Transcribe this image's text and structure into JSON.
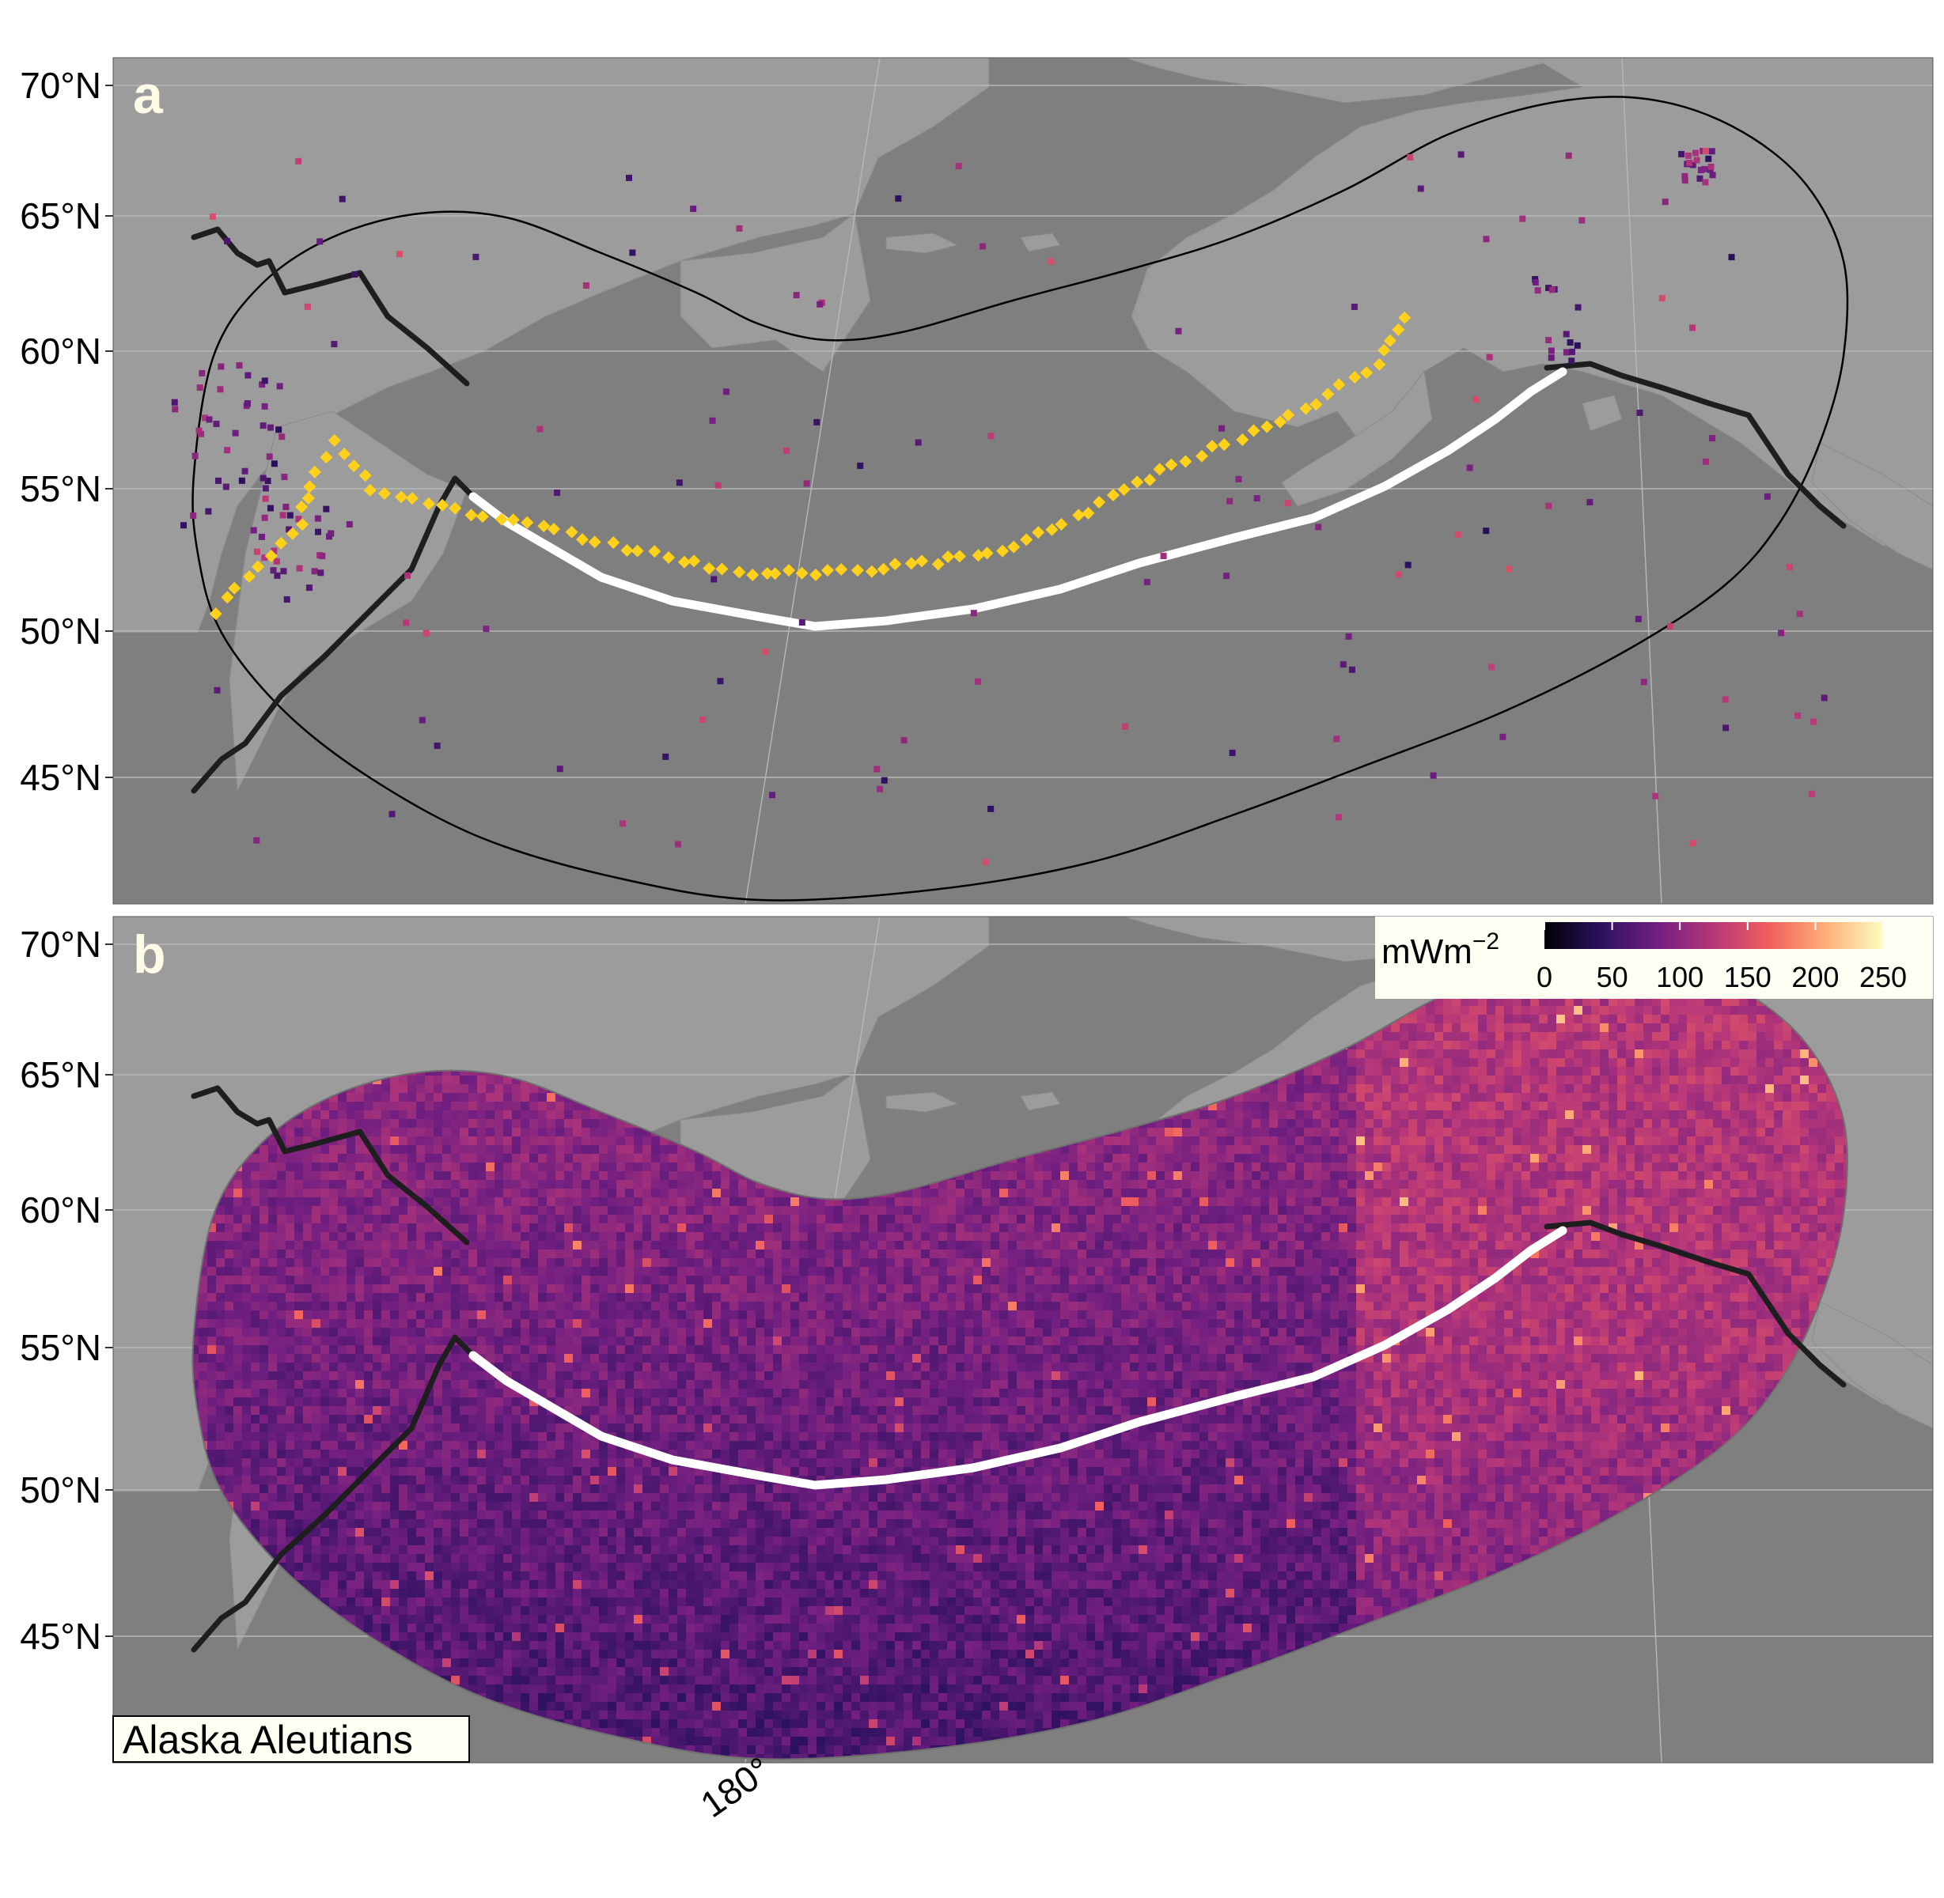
{
  "figure": {
    "colors": {
      "ocean": "#7f7f7f",
      "land": "#9c9c9c",
      "graticule": "#b8b8b8",
      "trench": "#ffffff",
      "plate_boundary": "#1e1e1e",
      "arc_volcano": "#ffd11a",
      "legend_bg": "#fefef2",
      "panel_letter": "#fdfbe6"
    },
    "panel_a": {
      "letter": "a"
    },
    "panel_b": {
      "letter": "b",
      "region_label": "Alaska Aleutians"
    },
    "y_axis_ticks": [
      "70°N",
      "65°N",
      "60°N",
      "55°N",
      "50°N",
      "45°N"
    ],
    "x_axis_ticks": [
      "180°"
    ],
    "legend": {
      "title": "mWm",
      "title_exponent": "−2",
      "ticks": [
        "0",
        "50",
        "100",
        "150",
        "200",
        "250"
      ],
      "min": 0,
      "max": 250,
      "colormap": "magma",
      "colormap_stops": [
        "#000004",
        "#2c115f",
        "#721f81",
        "#b73779",
        "#f1605d",
        "#feb078",
        "#fcfdbf"
      ]
    }
  }
}
